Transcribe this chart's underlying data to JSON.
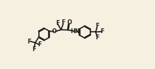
{
  "bg_color": "#f5f0e0",
  "line_color": "#1a1a1a",
  "text_color": "#1a1a1a",
  "lw": 1.2,
  "fs": 5.8,
  "fig_w": 2.23,
  "fig_h": 1.0,
  "dpi": 100,
  "xlim": [
    0,
    10
  ],
  "ylim": [
    0,
    4.5
  ]
}
